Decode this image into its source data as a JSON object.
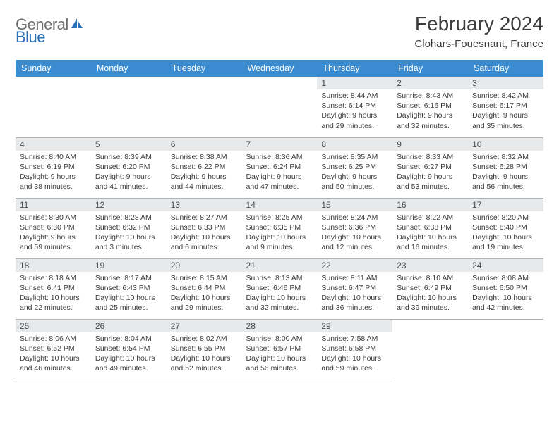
{
  "logo": {
    "word1": "General",
    "word2": "Blue"
  },
  "title": "February 2024",
  "location": "Clohars-Fouesnant, France",
  "colors": {
    "header_bg": "#3a8bd0",
    "header_text": "#ffffff",
    "daynum_bg": "#e8e9ea",
    "border": "#b0b3b5",
    "logo_gray": "#6b6d6f",
    "logo_blue": "#2a70b8",
    "text": "#3a3c3e"
  },
  "day_headers": [
    "Sunday",
    "Monday",
    "Tuesday",
    "Wednesday",
    "Thursday",
    "Friday",
    "Saturday"
  ],
  "weeks": [
    [
      null,
      null,
      null,
      null,
      {
        "n": "1",
        "sr": "8:44 AM",
        "ss": "6:14 PM",
        "dl": "9 hours and 29 minutes."
      },
      {
        "n": "2",
        "sr": "8:43 AM",
        "ss": "6:16 PM",
        "dl": "9 hours and 32 minutes."
      },
      {
        "n": "3",
        "sr": "8:42 AM",
        "ss": "6:17 PM",
        "dl": "9 hours and 35 minutes."
      }
    ],
    [
      {
        "n": "4",
        "sr": "8:40 AM",
        "ss": "6:19 PM",
        "dl": "9 hours and 38 minutes."
      },
      {
        "n": "5",
        "sr": "8:39 AM",
        "ss": "6:20 PM",
        "dl": "9 hours and 41 minutes."
      },
      {
        "n": "6",
        "sr": "8:38 AM",
        "ss": "6:22 PM",
        "dl": "9 hours and 44 minutes."
      },
      {
        "n": "7",
        "sr": "8:36 AM",
        "ss": "6:24 PM",
        "dl": "9 hours and 47 minutes."
      },
      {
        "n": "8",
        "sr": "8:35 AM",
        "ss": "6:25 PM",
        "dl": "9 hours and 50 minutes."
      },
      {
        "n": "9",
        "sr": "8:33 AM",
        "ss": "6:27 PM",
        "dl": "9 hours and 53 minutes."
      },
      {
        "n": "10",
        "sr": "8:32 AM",
        "ss": "6:28 PM",
        "dl": "9 hours and 56 minutes."
      }
    ],
    [
      {
        "n": "11",
        "sr": "8:30 AM",
        "ss": "6:30 PM",
        "dl": "9 hours and 59 minutes."
      },
      {
        "n": "12",
        "sr": "8:28 AM",
        "ss": "6:32 PM",
        "dl": "10 hours and 3 minutes."
      },
      {
        "n": "13",
        "sr": "8:27 AM",
        "ss": "6:33 PM",
        "dl": "10 hours and 6 minutes."
      },
      {
        "n": "14",
        "sr": "8:25 AM",
        "ss": "6:35 PM",
        "dl": "10 hours and 9 minutes."
      },
      {
        "n": "15",
        "sr": "8:24 AM",
        "ss": "6:36 PM",
        "dl": "10 hours and 12 minutes."
      },
      {
        "n": "16",
        "sr": "8:22 AM",
        "ss": "6:38 PM",
        "dl": "10 hours and 16 minutes."
      },
      {
        "n": "17",
        "sr": "8:20 AM",
        "ss": "6:40 PM",
        "dl": "10 hours and 19 minutes."
      }
    ],
    [
      {
        "n": "18",
        "sr": "8:18 AM",
        "ss": "6:41 PM",
        "dl": "10 hours and 22 minutes."
      },
      {
        "n": "19",
        "sr": "8:17 AM",
        "ss": "6:43 PM",
        "dl": "10 hours and 25 minutes."
      },
      {
        "n": "20",
        "sr": "8:15 AM",
        "ss": "6:44 PM",
        "dl": "10 hours and 29 minutes."
      },
      {
        "n": "21",
        "sr": "8:13 AM",
        "ss": "6:46 PM",
        "dl": "10 hours and 32 minutes."
      },
      {
        "n": "22",
        "sr": "8:11 AM",
        "ss": "6:47 PM",
        "dl": "10 hours and 36 minutes."
      },
      {
        "n": "23",
        "sr": "8:10 AM",
        "ss": "6:49 PM",
        "dl": "10 hours and 39 minutes."
      },
      {
        "n": "24",
        "sr": "8:08 AM",
        "ss": "6:50 PM",
        "dl": "10 hours and 42 minutes."
      }
    ],
    [
      {
        "n": "25",
        "sr": "8:06 AM",
        "ss": "6:52 PM",
        "dl": "10 hours and 46 minutes."
      },
      {
        "n": "26",
        "sr": "8:04 AM",
        "ss": "6:54 PM",
        "dl": "10 hours and 49 minutes."
      },
      {
        "n": "27",
        "sr": "8:02 AM",
        "ss": "6:55 PM",
        "dl": "10 hours and 52 minutes."
      },
      {
        "n": "28",
        "sr": "8:00 AM",
        "ss": "6:57 PM",
        "dl": "10 hours and 56 minutes."
      },
      {
        "n": "29",
        "sr": "7:58 AM",
        "ss": "6:58 PM",
        "dl": "10 hours and 59 minutes."
      },
      null,
      null
    ]
  ],
  "labels": {
    "sunrise": "Sunrise: ",
    "sunset": "Sunset: ",
    "daylight": "Daylight: "
  }
}
